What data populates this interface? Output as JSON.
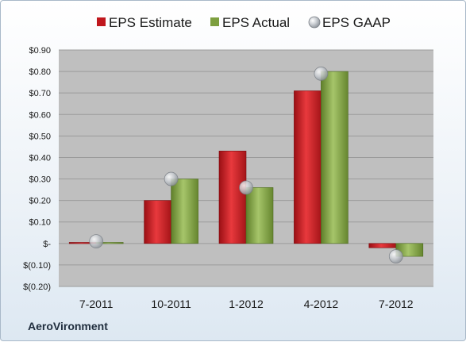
{
  "company": "AeroVironment",
  "chart_data": {
    "type": "bar",
    "categories": [
      "7-2011",
      "10-2011",
      "1-2012",
      "4-2012",
      "7-2012"
    ],
    "series": [
      {
        "name": "EPS Estimate",
        "kind": "bar",
        "color": "#c0171d",
        "values": [
          0.005,
          0.2,
          0.43,
          0.71,
          -0.02
        ]
      },
      {
        "name": "EPS Actual",
        "kind": "bar",
        "color": "#7d9f3f",
        "values": [
          0.005,
          0.3,
          0.26,
          0.8,
          -0.06
        ]
      },
      {
        "name": "EPS GAAP",
        "kind": "marker",
        "color": "#b7bcc2",
        "values": [
          0.01,
          0.3,
          0.26,
          0.79,
          -0.06
        ]
      }
    ],
    "yticks": [
      {
        "value": 0.9,
        "label": "$0.90"
      },
      {
        "value": 0.8,
        "label": "$0.80"
      },
      {
        "value": 0.7,
        "label": "$0.70"
      },
      {
        "value": 0.6,
        "label": "$0.60"
      },
      {
        "value": 0.5,
        "label": "$0.50"
      },
      {
        "value": 0.4,
        "label": "$0.40"
      },
      {
        "value": 0.3,
        "label": "$0.30"
      },
      {
        "value": 0.2,
        "label": "$0.20"
      },
      {
        "value": 0.1,
        "label": "$0.10"
      },
      {
        "value": 0.0,
        "label": "$-"
      },
      {
        "value": -0.1,
        "label": "$(0.10)"
      },
      {
        "value": -0.2,
        "label": "$(0.20)"
      }
    ],
    "ylim": [
      -0.2,
      0.9
    ],
    "grid": true,
    "legend_position": "top"
  }
}
